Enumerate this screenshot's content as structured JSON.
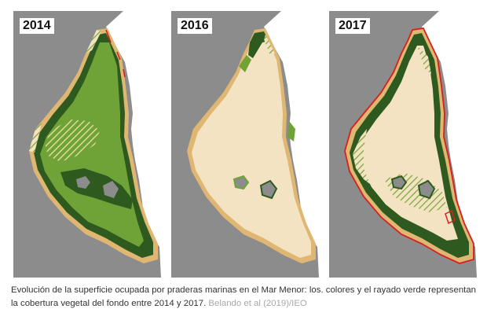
{
  "figure": {
    "panels": [
      {
        "year": "2014"
      },
      {
        "year": "2016"
      },
      {
        "year": "2017"
      }
    ],
    "caption": "Evolución de la superficie ocupada por praderas marinas en el Mar Menor: los. colores y el rayado verde representan la cobertura vegetal del fondo entre 2014 y 2017.",
    "credit": "Belando et al (2019)/IEO"
  },
  "colors": {
    "land": "#8c8c8c",
    "sea": "#ffffff",
    "lagoon_bare": "#f3e3c3",
    "meadow_dense": "#2f5a1f",
    "meadow_light": "#6fa337",
    "sandy_edge": "#e0b772",
    "lost_outline": "#d42020"
  }
}
